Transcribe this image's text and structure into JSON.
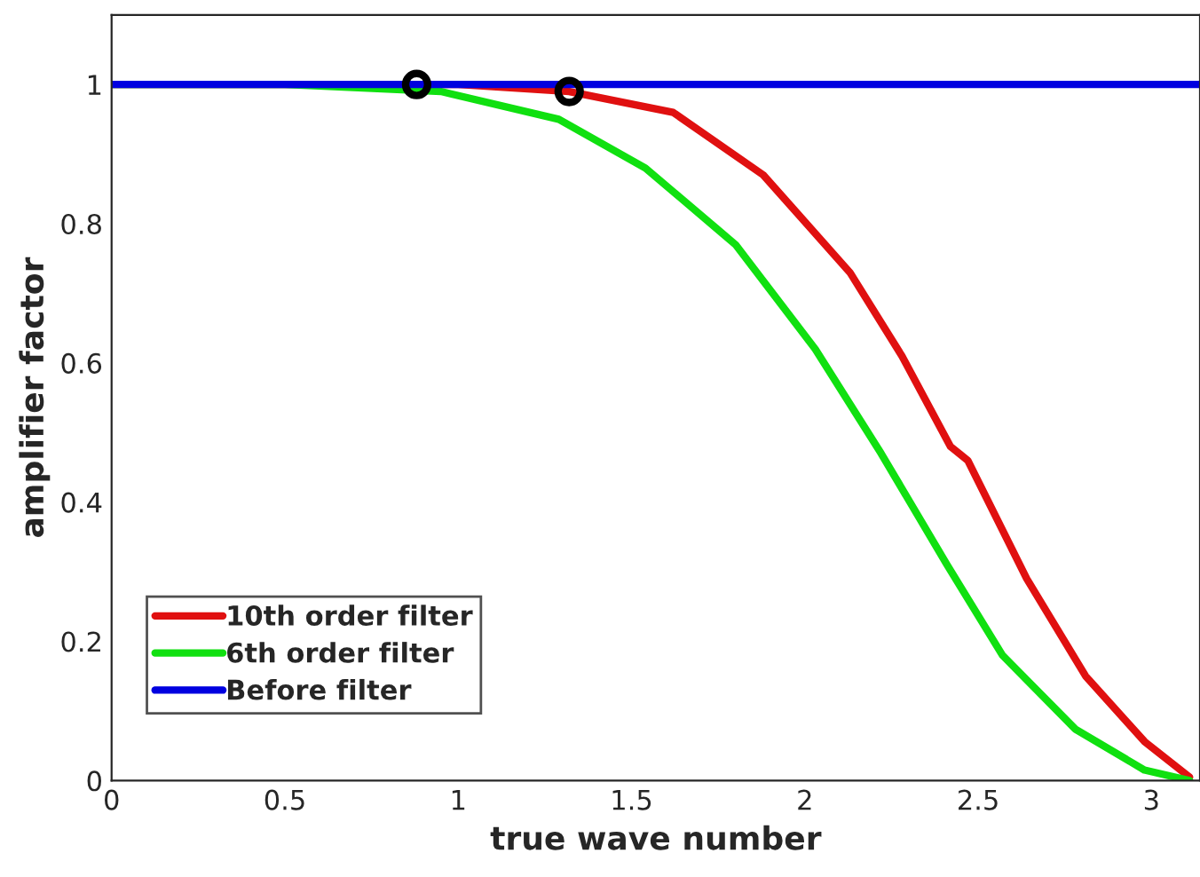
{
  "chart_data": {
    "type": "line",
    "xlabel": "true wave number",
    "ylabel": "amplifier factor",
    "xlim": [
      0,
      3.14
    ],
    "ylim": [
      0,
      1.1
    ],
    "xticks": [
      0,
      0.5,
      1,
      1.5,
      2,
      2.5,
      3
    ],
    "yticks": [
      0,
      0.2,
      0.4,
      0.6,
      0.8,
      1
    ],
    "grid": false,
    "legend": "bottom left",
    "line_style": "solid",
    "series": [
      {
        "name": "10th order filter",
        "color": "#e01010",
        "x": [
          0,
          1.0,
          1.32,
          1.62,
          1.88,
          2.13,
          2.28,
          2.42,
          2.47,
          2.64,
          2.81,
          2.98,
          3.11
        ],
        "values": [
          1,
          1,
          0.99,
          0.96,
          0.87,
          0.73,
          0.61,
          0.48,
          0.46,
          0.29,
          0.15,
          0.056,
          0.005
        ]
      },
      {
        "name": "6th order filter",
        "color": "#10e010",
        "x": [
          0,
          0.5,
          0.95,
          1.29,
          1.54,
          1.8,
          2.03,
          2.22,
          2.41,
          2.57,
          2.78,
          2.98,
          3.11
        ],
        "values": [
          1,
          1,
          0.99,
          0.95,
          0.88,
          0.77,
          0.62,
          0.47,
          0.31,
          0.18,
          0.074,
          0.015,
          0
        ]
      },
      {
        "name": "Before filter",
        "color": "#0000e0",
        "x": [
          0,
          3.14
        ],
        "values": [
          1,
          1
        ]
      },
      {
        "type": "scatter",
        "color": "#000000",
        "marker": "circle",
        "x": [
          0.88,
          1.32
        ],
        "values": [
          1,
          0.99
        ]
      }
    ]
  }
}
